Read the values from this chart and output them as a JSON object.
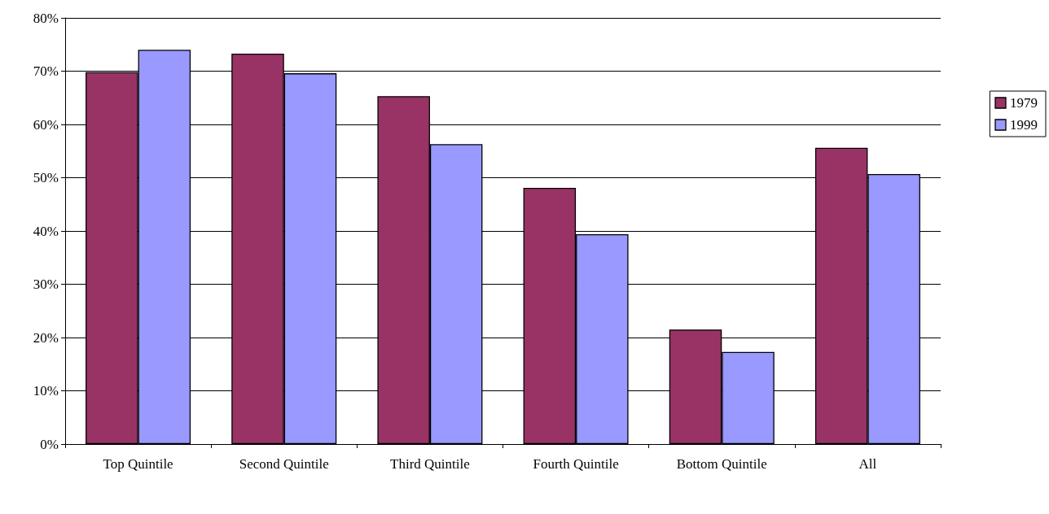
{
  "chart_data": {
    "type": "bar",
    "categories": [
      "Top Quintile",
      "Second Quintile",
      "Third Quintile",
      "Fourth Quintile",
      "Bottom Quintile",
      "All"
    ],
    "series": [
      {
        "name": "1979",
        "color": "#993366",
        "values": [
          69.8,
          73.3,
          65.3,
          48.1,
          21.5,
          55.6
        ]
      },
      {
        "name": "1999",
        "color": "#9999ff",
        "values": [
          74.0,
          69.6,
          56.3,
          39.4,
          17.3,
          50.7
        ]
      }
    ],
    "ylim": [
      0,
      80
    ],
    "yticks": [
      {
        "value": 0,
        "label": "0%"
      },
      {
        "value": 10,
        "label": "10%"
      },
      {
        "value": 20,
        "label": "20%"
      },
      {
        "value": 30,
        "label": "30%"
      },
      {
        "value": 40,
        "label": "40%"
      },
      {
        "value": 50,
        "label": "50%"
      },
      {
        "value": 60,
        "label": "60%"
      },
      {
        "value": 70,
        "label": "70%"
      },
      {
        "value": 80,
        "label": "80%"
      }
    ],
    "grid": "y",
    "legend": "right"
  }
}
